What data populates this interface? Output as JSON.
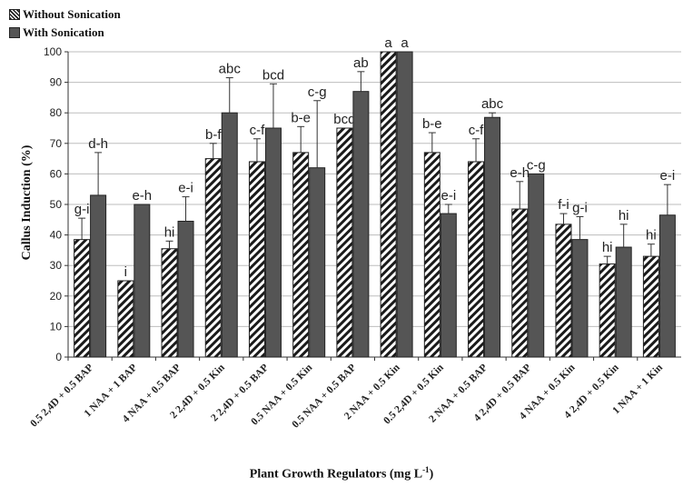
{
  "chart_data": {
    "type": "bar",
    "xlabel": "Plant Growth Regulators (mg L",
    "xlabel_sup": "-1",
    "xlabel_end": ")",
    "ylabel": "Callus Induction (%)",
    "ylim": [
      0,
      100
    ],
    "yticks": [
      0,
      10,
      20,
      30,
      40,
      50,
      60,
      70,
      80,
      90,
      100
    ],
    "legend_position": "top-left",
    "categories": [
      "0.5 2,4D + 0.5 BAP",
      "1 NAA + 1 BAP",
      "4 NAA + 0.5 BAP",
      "2 2,4D + 0.5 Kin",
      "2 2,4D + 0.5 BAP",
      "0.5  NAA + 0.5 Kin",
      "0.5  NAA + 0.5 BAP",
      "2  NAA + 0.5 Kin",
      "0.5 2,4D + 0.5 Kin",
      "2 NAA + 0.5 BAP",
      "4 2,4D + 0.5 BAP",
      "4 NAA + 0.5 Kin",
      "4 2,4D + 0.5 Kin",
      "1 NAA + 1 Kin"
    ],
    "series": [
      {
        "name": "Without Sonication",
        "fill": "hatch",
        "values": [
          38.5,
          25,
          35.5,
          65,
          64,
          67,
          75,
          100,
          67,
          64,
          48.5,
          43.5,
          30.5,
          33
        ],
        "errors": [
          7,
          0,
          2.5,
          5,
          7.5,
          8.5,
          0,
          0,
          6.5,
          7.5,
          9,
          3.5,
          2.5,
          4
        ],
        "labels": [
          "g-i",
          "i",
          "hi",
          "b-f",
          "c-f",
          "b-e",
          "bcd",
          "a",
          "b-e",
          "c-f",
          "e-h",
          "f-i",
          "hi",
          "hi"
        ]
      },
      {
        "name": "With Sonication",
        "fill": "#555555",
        "values": [
          53,
          50,
          44.5,
          80,
          75,
          62,
          87,
          100,
          47,
          78.5,
          60,
          38.5,
          36,
          46.5
        ],
        "errors": [
          14,
          0,
          8,
          11.5,
          14.5,
          22,
          6.5,
          0,
          3,
          1.5,
          0,
          7.5,
          7.5,
          10
        ],
        "labels": [
          "d-h",
          "e-h",
          "e-i",
          "abc",
          "bcd",
          "c-g",
          "ab",
          "a",
          "e-i",
          "abc",
          "c-g",
          "g-i",
          "hi",
          "e-i"
        ]
      }
    ]
  }
}
